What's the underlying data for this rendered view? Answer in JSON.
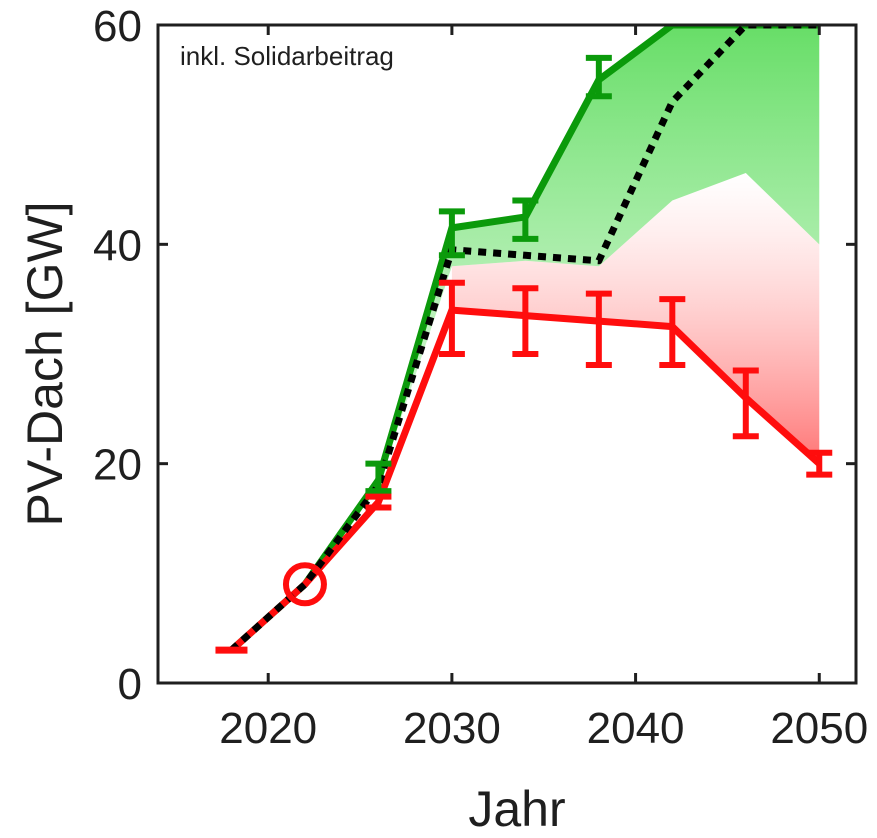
{
  "chart_data": {
    "type": "line",
    "title": "",
    "xlabel": "Jahr",
    "ylabel": "PV-Dach  [GW]",
    "annotation": "inkl. Solidarbeitrag",
    "xlim": [
      2014,
      2052
    ],
    "ylim": [
      0,
      60
    ],
    "x_ticks": [
      "2020",
      "2030",
      "2040",
      "2050"
    ],
    "y_ticks": [
      "0",
      "20",
      "40",
      "60"
    ],
    "grid": false,
    "legend": "none",
    "colors": {
      "green": "#0b9a0b",
      "red": "#ff0d0d",
      "dotted": "#000000",
      "green_fill": "#66e066",
      "red_fill": "#ff6e6e"
    },
    "series": [
      {
        "color": "green",
        "x": [
          2018,
          2022,
          2026,
          2030,
          2034,
          2038,
          2042,
          2046,
          2050
        ],
        "y": [
          3,
          9,
          18.5,
          41.5,
          42.5,
          55,
          60,
          60,
          60
        ],
        "err_low": [
          null,
          null,
          17.5,
          39,
          40.5,
          53.5,
          null,
          null,
          null
        ],
        "err_high": [
          null,
          null,
          20,
          43,
          44,
          57,
          null,
          null,
          null
        ]
      },
      {
        "color": "red",
        "x": [
          2018,
          2022,
          2026,
          2030,
          2034,
          2038,
          2042,
          2046,
          2050
        ],
        "y": [
          3,
          9,
          16.5,
          34,
          33.5,
          33,
          32.5,
          26,
          20
        ],
        "err_low": [
          null,
          null,
          16,
          30,
          30,
          29,
          29,
          22.5,
          19
        ],
        "err_high": [
          null,
          null,
          17,
          36.5,
          36,
          35.5,
          35,
          28.5,
          21
        ]
      },
      {
        "color": "dotted",
        "x": [
          2018,
          2022,
          2026,
          2030,
          2034,
          2038,
          2042,
          2046,
          2050
        ],
        "y": [
          3,
          9,
          18,
          39.5,
          39,
          38.5,
          53,
          60,
          60
        ]
      }
    ],
    "band_green": {
      "x": [
        2026,
        2030,
        2034,
        2038,
        2042,
        2046,
        2050
      ],
      "upper": [
        18.5,
        41.5,
        42.5,
        55,
        60,
        60,
        60
      ],
      "lower": [
        18,
        38,
        38.5,
        38,
        44,
        46.5,
        40
      ]
    },
    "band_red": {
      "x": [
        2030,
        2034,
        2038,
        2042,
        2046,
        2050
      ],
      "upper": [
        38,
        38.5,
        38,
        44,
        46.5,
        40
      ],
      "lower": [
        34,
        33.5,
        33,
        32.5,
        26,
        20
      ]
    },
    "marker": {
      "x": 2022,
      "y": 9,
      "shape": "open-circle",
      "color": "red"
    }
  }
}
